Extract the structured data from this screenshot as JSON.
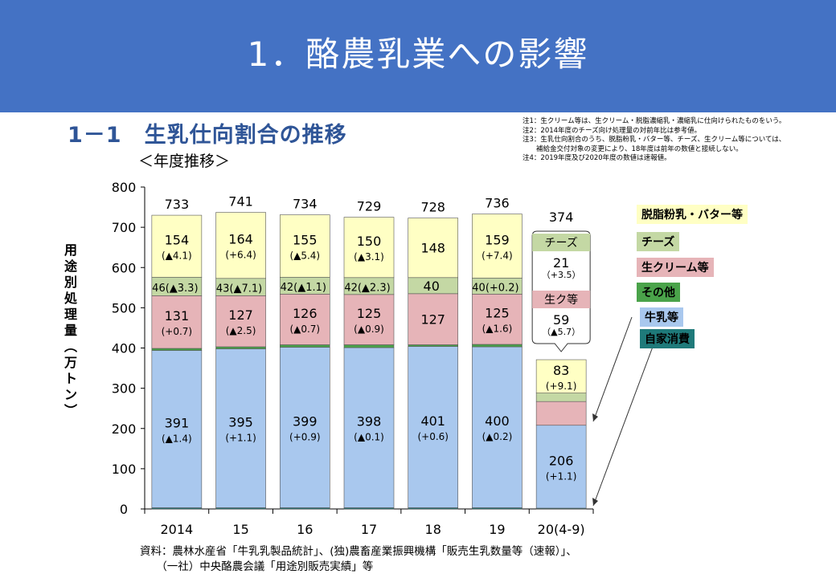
{
  "header": {
    "title": "1．酪農乳業への影響"
  },
  "subtitle": "1－1　生乳仕向割合の推移",
  "section_label": "＜年度推移＞",
  "notes": [
    "注1：生クリーム等は、生クリーム・脱脂濃縮乳・濃縮乳に仕向けられたものをいう。",
    "注2：2014年度のチーズ向け処理量の対前年比は参考値。",
    "注3：生乳仕向割合のうち、脱脂粉乳・バター等、チーズ、生クリーム等については、",
    "　　補給金交付対象の変更により、18年度は前年の数値と接続しない。",
    "注4：2019年度及び2020年度の数値は速報値。"
  ],
  "source_lines": [
    "資料：農林水産省「牛乳乳製品統計」、(独)農畜産業振興機構「販売生乳数量等（速報）」、",
    "　　（一社）中央酪農会議「用途別販売実績」等"
  ],
  "colors": {
    "header_bg": "#4472c4",
    "milk": "#a9c8ee",
    "home": "#1f7a7a",
    "other": "#4aa34a",
    "cream": "#e6b4b8",
    "cheese": "#c4d8a4",
    "powder": "#ffffc4"
  },
  "legend": [
    {
      "label": "脱脂粉乳・バター等",
      "color": "#ffffc4"
    },
    {
      "label": "チーズ",
      "color": "#c4d8a4"
    },
    {
      "label": "生クリーム等",
      "color": "#e6b4b8"
    },
    {
      "label": "その他",
      "color": "#4aa34a"
    },
    {
      "label": "牛乳等",
      "color": "#a9c8ee"
    },
    {
      "label": "自家消費",
      "color": "#1f7a7a"
    }
  ],
  "callout": {
    "total": "374",
    "cheese_label": "チーズ",
    "cheese_value": "21",
    "cheese_change": "（+3.5）",
    "cream_label": "生ク等",
    "cream_value": "59",
    "cream_change": "（▲5.7）"
  },
  "chart_data": {
    "type": "bar",
    "stacked": true,
    "ylabel": "用途別処理量（万トン）",
    "ylim": [
      0,
      800
    ],
    "yticks": [
      0,
      100,
      200,
      300,
      400,
      500,
      600,
      700,
      800
    ],
    "grid": false,
    "categories": [
      "2014",
      "15",
      "16",
      "17",
      "18",
      "19",
      "20(4-9)"
    ],
    "totals": [
      "733",
      "741",
      "734",
      "729",
      "728",
      "736",
      "374"
    ],
    "series": [
      {
        "name": "自家消費",
        "values": [
          3,
          3,
          3,
          3,
          3,
          3,
          2
        ]
      },
      {
        "name": "牛乳等",
        "values": [
          391,
          395,
          399,
          398,
          401,
          400,
          206
        ],
        "labels": [
          "391",
          "395",
          "399",
          "398",
          "401",
          "400",
          "206"
        ],
        "changes": [
          "(▲1.4)",
          "(+1.1)",
          "(+0.9)",
          "(▲0.1)",
          "(+0.6)",
          "(▲0.2)",
          "(+1.1)"
        ]
      },
      {
        "name": "その他",
        "values": [
          5,
          5,
          6,
          7,
          4,
          6,
          0
        ]
      },
      {
        "name": "生クリーム等",
        "values": [
          131,
          127,
          126,
          125,
          127,
          125,
          59
        ],
        "labels": [
          "131",
          "127",
          "126",
          "125",
          "127",
          "125",
          ""
        ],
        "changes": [
          "(+0.7)",
          "(▲2.5)",
          "(▲0.7)",
          "(▲0.9)",
          "",
          "(▲1.6)",
          ""
        ]
      },
      {
        "name": "チーズ",
        "values": [
          46,
          43,
          42,
          42,
          40,
          40,
          21
        ],
        "labels": [
          "46",
          "43",
          "42",
          "42",
          "40",
          "40",
          ""
        ],
        "changes": [
          "(▲3.3)",
          "(▲7.1)",
          "(▲1.1)",
          "(▲2.3)",
          "",
          "(+0.2)",
          ""
        ]
      },
      {
        "name": "脱脂粉乳・バター等",
        "values": [
          154,
          164,
          155,
          150,
          148,
          159,
          83
        ],
        "labels": [
          "154",
          "164",
          "155",
          "150",
          "148",
          "159",
          "83"
        ],
        "changes": [
          "(▲4.1)",
          "(+6.4)",
          "(▲5.4)",
          "(▲3.1)",
          "",
          "(+7.4)",
          "(+9.1)"
        ]
      }
    ]
  }
}
